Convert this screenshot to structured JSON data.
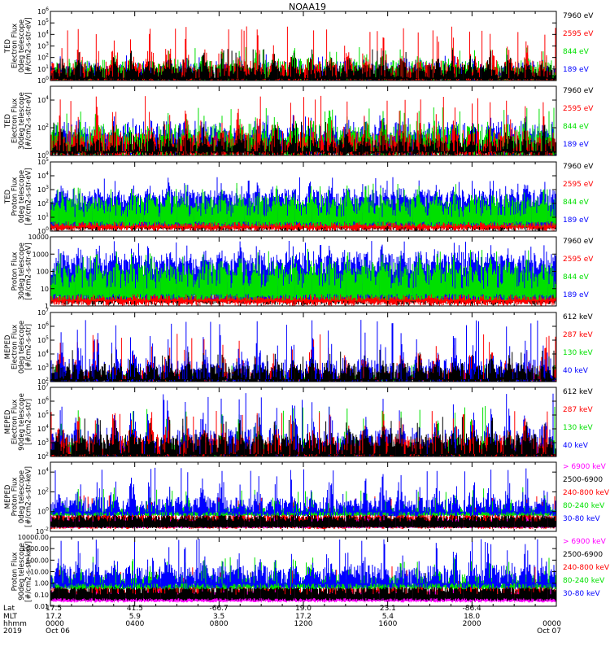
{
  "title": "NOAA19",
  "colors": {
    "black": "#000000",
    "red": "#ff0000",
    "green": "#00e000",
    "blue": "#0000ff",
    "magenta": "#ff00ff"
  },
  "time_axis": {
    "row_labels": [
      "Lat",
      "MLT",
      "hhmm",
      "2019"
    ],
    "ticks": [
      {
        "lat": "17.5",
        "mlt": "17.2",
        "hhmm": "0000",
        "date": "Oct 06",
        "pos": 0.0
      },
      {
        "lat": "41.5",
        "mlt": "5.9",
        "hhmm": "0400",
        "date": "",
        "pos": 0.167
      },
      {
        "lat": "-66.7",
        "mlt": "3.5",
        "hhmm": "0800",
        "date": "",
        "pos": 0.333
      },
      {
        "lat": "19.0",
        "mlt": "17.2",
        "hhmm": "1200",
        "date": "",
        "pos": 0.5
      },
      {
        "lat": "23.1",
        "mlt": "5.4",
        "hhmm": "1600",
        "date": "",
        "pos": 0.667
      },
      {
        "lat": "-86.4",
        "mlt": "18.0",
        "hhmm": "2000",
        "date": "",
        "pos": 0.833
      },
      {
        "lat": "",
        "mlt": "",
        "hhmm": "0000",
        "date": "Oct 07",
        "pos": 1.0
      }
    ]
  },
  "chart_data": [
    {
      "type": "line",
      "name": "ted-electron-0deg",
      "ylabel_lines": [
        "TED",
        "Electron Flux",
        "0deg telescope",
        "[#/cm2-s-str-eV]"
      ],
      "scale": "log",
      "ylim": [
        1,
        1000000
      ],
      "yticks": [
        1,
        10,
        100,
        1000,
        10000,
        100000,
        1000000
      ],
      "ytick_labels": [
        "10^0",
        "10^1",
        "10^2",
        "10^3",
        "10^4",
        "10^5",
        "10^6"
      ],
      "legend": [
        {
          "label": "7960 eV",
          "color": "black"
        },
        {
          "label": "2595 eV",
          "color": "red"
        },
        {
          "label": "844 eV",
          "color": "green"
        },
        {
          "label": "189 eV",
          "color": "blue"
        }
      ],
      "series": [
        {
          "color": "blue",
          "base": 8,
          "spread": 6,
          "peak": 200,
          "floor": 1.5
        },
        {
          "color": "green",
          "base": 10,
          "spread": 8,
          "peak": 800,
          "floor": 1.5
        },
        {
          "color": "red",
          "base": 5,
          "spread": 12,
          "peak": 50000,
          "floor": 1.5
        },
        {
          "color": "black",
          "base": 6,
          "spread": 4,
          "peak": 600,
          "floor": 1.5
        }
      ]
    },
    {
      "type": "line",
      "name": "ted-electron-30deg",
      "ylabel_lines": [
        "TED",
        "Electron Flux",
        "30deg telescope",
        "[#/cm2-s-str-eV]"
      ],
      "scale": "log",
      "ylim": [
        1,
        100000
      ],
      "yticks": [
        1,
        100,
        10000
      ],
      "ytick_labels": [
        "10^0",
        "10^2",
        "10^4"
      ],
      "legend": [
        {
          "label": "7960 eV",
          "color": "black"
        },
        {
          "label": "2595 eV",
          "color": "red"
        },
        {
          "label": "844 eV",
          "color": "green"
        },
        {
          "label": "189 eV",
          "color": "blue"
        }
      ],
      "series": [
        {
          "color": "blue",
          "base": 30,
          "spread": 10,
          "peak": 1000,
          "floor": 2
        },
        {
          "color": "green",
          "base": 20,
          "spread": 10,
          "peak": 3000,
          "floor": 2
        },
        {
          "color": "red",
          "base": 6,
          "spread": 12,
          "peak": 20000,
          "floor": 2
        },
        {
          "color": "black",
          "base": 4,
          "spread": 5,
          "peak": 300,
          "floor": 2
        }
      ]
    },
    {
      "type": "line",
      "name": "ted-proton-0deg",
      "ylabel_lines": [
        "TED",
        "Proton Flux",
        "0deg telescope",
        "[#/cm2-s-str-eV]"
      ],
      "scale": "log",
      "ylim": [
        1,
        100000
      ],
      "yticks": [
        1,
        10,
        100,
        1000,
        10000,
        100000
      ],
      "ytick_labels": [
        "10^0",
        "10^1",
        "10^2",
        "10^3",
        "10^4",
        "10^5"
      ],
      "legend": [
        {
          "label": "7960 eV",
          "color": "black"
        },
        {
          "label": "2595 eV",
          "color": "red"
        },
        {
          "label": "844 eV",
          "color": "green"
        },
        {
          "label": "189 eV",
          "color": "blue"
        }
      ],
      "series": [
        {
          "color": "black",
          "base": 8,
          "spread": 4,
          "peak": 100,
          "floor": 2
        },
        {
          "color": "red",
          "base": 15,
          "spread": 4,
          "peak": 200,
          "floor": 2
        },
        {
          "color": "blue",
          "base": 250,
          "spread": 5,
          "peak": 8000,
          "floor": 5
        },
        {
          "color": "green",
          "base": 60,
          "spread": 6,
          "peak": 3000,
          "floor": 5
        }
      ]
    },
    {
      "type": "line",
      "name": "ted-proton-30deg",
      "ylabel_lines": [
        "Proton Flux",
        "30deg telescope",
        "[#/cm2-s-str-eV]"
      ],
      "scale": "log",
      "ylim": [
        1,
        10000
      ],
      "yticks": [
        1,
        10,
        100,
        1000,
        10000
      ],
      "ytick_labels": [
        "1",
        "10",
        "100",
        "1000",
        "10000"
      ],
      "legend": [
        {
          "label": "7960 eV",
          "color": "black"
        },
        {
          "label": "2595 eV",
          "color": "red"
        },
        {
          "label": "844 eV",
          "color": "green"
        },
        {
          "label": "189 eV",
          "color": "blue"
        }
      ],
      "series": [
        {
          "color": "black",
          "base": 4,
          "spread": 3,
          "peak": 30,
          "floor": 2
        },
        {
          "color": "red",
          "base": 10,
          "spread": 4,
          "peak": 80,
          "floor": 2
        },
        {
          "color": "blue",
          "base": 300,
          "spread": 5,
          "peak": 6000,
          "floor": 5
        },
        {
          "color": "green",
          "base": 60,
          "spread": 6,
          "peak": 2000,
          "floor": 5
        }
      ]
    },
    {
      "type": "line",
      "name": "meped-electron-0deg",
      "ylabel_lines": [
        "MEPED",
        "Electron Flux",
        "0deg telescope",
        "[#/cm2-s-str]"
      ],
      "scale": "log",
      "ylim": [
        100,
        10000000
      ],
      "yticks": [
        100,
        1000,
        10000,
        100000,
        1000000,
        10000000
      ],
      "ytick_labels": [
        "10^2",
        "10^3",
        "10^4",
        "10^5",
        "10^6",
        "10^7"
      ],
      "legend": [
        {
          "label": "612 keV",
          "color": "black"
        },
        {
          "label": "287 keV",
          "color": "red"
        },
        {
          "label": "130 keV",
          "color": "green"
        },
        {
          "label": "40 keV",
          "color": "blue"
        }
      ],
      "series": [
        {
          "color": "green",
          "base": 200,
          "spread": 2,
          "peak": 2000,
          "floor": 150
        },
        {
          "color": "red",
          "base": 250,
          "spread": 3,
          "peak": 300000,
          "floor": 150
        },
        {
          "color": "blue",
          "base": 400,
          "spread": 12,
          "peak": 3000000,
          "floor": 150
        },
        {
          "color": "black",
          "base": 400,
          "spread": 6,
          "peak": 20000,
          "floor": 150
        }
      ]
    },
    {
      "type": "line",
      "name": "meped-electron-90deg",
      "ylabel_lines": [
        "MEPED",
        "Electron Flux",
        "90deg telescope",
        "[#/cm2-s-str]"
      ],
      "scale": "log",
      "ylim": [
        100,
        10000000
      ],
      "yticks": [
        100,
        1000,
        10000,
        100000,
        1000000,
        10000000
      ],
      "ytick_labels": [
        "10^2",
        "10^3",
        "10^4",
        "10^5",
        "10^6",
        "10^7"
      ],
      "legend": [
        {
          "label": "612 keV",
          "color": "black"
        },
        {
          "label": "287 keV",
          "color": "red"
        },
        {
          "label": "130 keV",
          "color": "green"
        },
        {
          "label": "40 keV",
          "color": "blue"
        }
      ],
      "series": [
        {
          "color": "green",
          "base": 300,
          "spread": 8,
          "peak": 500000,
          "floor": 150
        },
        {
          "color": "blue",
          "base": 800,
          "spread": 15,
          "peak": 4000000,
          "floor": 150
        },
        {
          "color": "red",
          "base": 500,
          "spread": 8,
          "peak": 200000,
          "floor": 150
        },
        {
          "color": "black",
          "base": 600,
          "spread": 8,
          "peak": 100000,
          "floor": 150
        }
      ]
    },
    {
      "type": "line",
      "name": "meped-proton-0deg",
      "ylabel_lines": [
        "MEPED",
        "Proton Flux",
        "0deg telescope",
        "[#/cm2-s-str-keV]"
      ],
      "scale": "log",
      "ylim": [
        0.01,
        100000
      ],
      "yticks": [
        0.01,
        1,
        100,
        10000
      ],
      "ytick_labels": [
        "10^-2",
        "10^0",
        "10^2",
        "10^4"
      ],
      "legend": [
        {
          "label": "> 6900 keV",
          "color": "magenta"
        },
        {
          "label": "2500-6900",
          "color": "black"
        },
        {
          "label": "240-800 keV",
          "color": "red"
        },
        {
          "label": "80-240 keV",
          "color": "green"
        },
        {
          "label": "30-80 keV",
          "color": "blue"
        }
      ],
      "series": [
        {
          "color": "red",
          "base": 0.3,
          "spread": 3,
          "peak": 50,
          "floor": 0.03
        },
        {
          "color": "magenta",
          "base": 0.1,
          "spread": 2,
          "peak": 0.5,
          "floor": 0.03
        },
        {
          "color": "black",
          "base": 0.2,
          "spread": 2,
          "peak": 5,
          "floor": 0.03
        },
        {
          "color": "green",
          "base": 1.5,
          "spread": 2,
          "peak": 300,
          "floor": 0.5
        },
        {
          "color": "blue",
          "base": 3,
          "spread": 10,
          "peak": 30000,
          "floor": 1
        }
      ]
    },
    {
      "type": "line",
      "name": "meped-proton-90deg",
      "ylabel_lines": [
        "Proton Flux",
        "90deg telescope",
        "[#/cm2-s-str-keV]"
      ],
      "scale": "log",
      "ylim": [
        0.01,
        10000
      ],
      "yticks": [
        0.01,
        0.1,
        1,
        10,
        100,
        1000,
        10000
      ],
      "ytick_labels": [
        "0.01",
        "0.10",
        "1.00",
        "10.00",
        "100.00",
        "1000.00",
        "10000.00"
      ],
      "legend": [
        {
          "label": "> 6900 keV",
          "color": "magenta"
        },
        {
          "label": "2500-6900",
          "color": "black"
        },
        {
          "label": "240-800 keV",
          "color": "red"
        },
        {
          "label": "80-240 keV",
          "color": "green"
        },
        {
          "label": "30-80 keV",
          "color": "blue"
        }
      ],
      "series": [
        {
          "color": "red",
          "base": 0.3,
          "spread": 3,
          "peak": 30,
          "floor": 0.05
        },
        {
          "color": "magenta",
          "base": 0.1,
          "spread": 2,
          "peak": 0.4,
          "floor": 0.03
        },
        {
          "color": "black",
          "base": 0.3,
          "spread": 3,
          "peak": 10,
          "floor": 0.05
        },
        {
          "color": "green",
          "base": 2,
          "spread": 3,
          "peak": 200,
          "floor": 0.5
        },
        {
          "color": "blue",
          "base": 4,
          "spread": 10,
          "peak": 8000,
          "floor": 1
        }
      ]
    }
  ]
}
